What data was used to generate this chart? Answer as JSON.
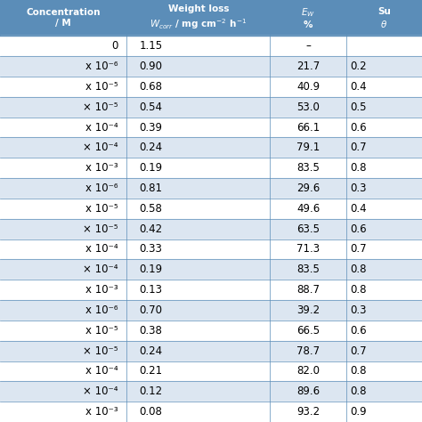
{
  "header_bg": "#5b8db8",
  "row_bg_white": "#ffffff",
  "row_bg_blue": "#dce6f1",
  "header_text_color": "#ffffff",
  "body_text_color": "#000000",
  "line_color": "#5b8db8",
  "col0_text": [
    "0",
    "x 10⁻⁶",
    "x 10⁻⁵",
    "× 10⁻⁵",
    "x 10⁻⁴",
    "× 10⁻⁴",
    "x 10⁻³",
    "x 10⁻⁶",
    "x 10⁻⁵",
    "× 10⁻⁵",
    "x 10⁻⁴",
    "× 10⁻⁴",
    "x 10⁻³",
    "x 10⁻⁶",
    "x 10⁻⁵",
    "× 10⁻⁵",
    "x 10⁻⁴",
    "× 10⁻⁴",
    "x 10⁻³"
  ],
  "col1_text": [
    "1.15",
    "0.90",
    "0.68",
    "0.54",
    "0.39",
    "0.24",
    "0.19",
    "0.81",
    "0.58",
    "0.42",
    "0.33",
    "0.19",
    "0.13",
    "0.70",
    "0.38",
    "0.24",
    "0.21",
    "0.12",
    "0.08"
  ],
  "col2_text": [
    "–",
    "21.7",
    "40.9",
    "53.0",
    "66.1",
    "79.1",
    "83.5",
    "29.6",
    "49.6",
    "63.5",
    "71.3",
    "83.5",
    "88.7",
    "39.2",
    "66.5",
    "78.7",
    "82.0",
    "89.6",
    "93.2"
  ],
  "col3_text": [
    "",
    "0.2",
    "0.4",
    "0.5",
    "0.6",
    "0.7",
    "0.8",
    "0.3",
    "0.4",
    "0.6",
    "0.7",
    "0.8",
    "0.8",
    "0.3",
    "0.6",
    "0.7",
    "0.8",
    "0.8",
    "0.9"
  ]
}
